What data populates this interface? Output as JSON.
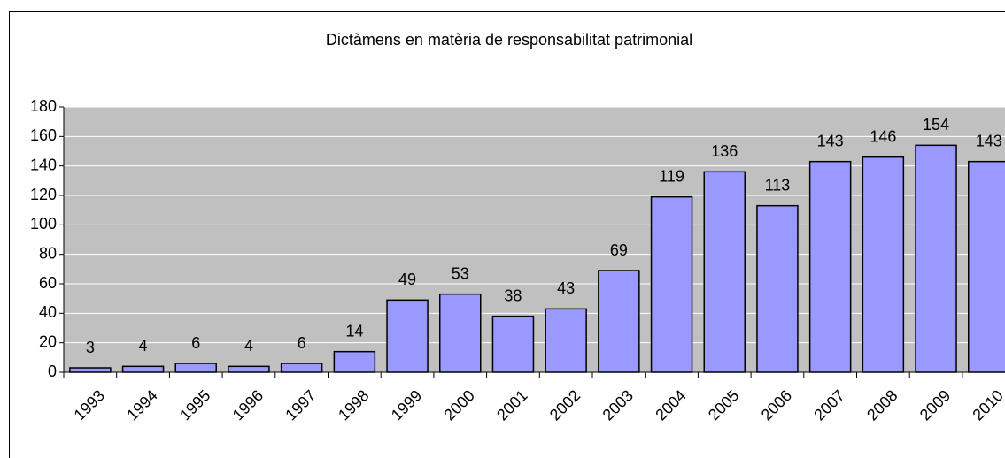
{
  "chart_data": {
    "type": "bar",
    "title": "Dictàmens en matèria de responsabilitat patrimonial",
    "categories": [
      "1993",
      "1994",
      "1995",
      "1996",
      "1997",
      "1998",
      "1999",
      "2000",
      "2001",
      "2002",
      "2003",
      "2004",
      "2005",
      "2006",
      "2007",
      "2008",
      "2009",
      "2010"
    ],
    "values": [
      3,
      4,
      6,
      4,
      6,
      14,
      49,
      53,
      38,
      43,
      69,
      119,
      136,
      113,
      143,
      146,
      154,
      143
    ],
    "color": "#9999ff",
    "ylim": [
      0,
      180
    ],
    "yticks": [
      0,
      20,
      40,
      60,
      80,
      100,
      120,
      140,
      160,
      180
    ],
    "grid": true
  }
}
